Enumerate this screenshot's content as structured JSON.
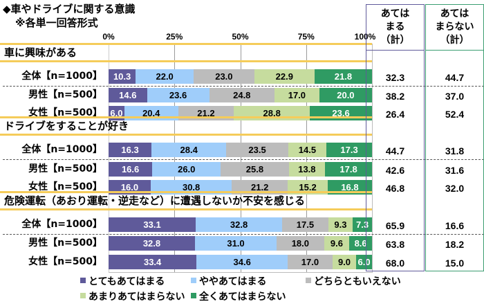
{
  "title": "◆車やドライブに関する意識",
  "subtitle": "※各単一回答形式",
  "chart_data": {
    "type": "bar",
    "orientation": "horizontal-stacked-100",
    "title": "◆車やドライブに関する意識",
    "subtitle": "※各単一回答形式",
    "x_ticks": [
      "0%",
      "25%",
      "50%",
      "75%",
      "100%"
    ],
    "xlim": [
      0,
      100
    ],
    "legend_position": "bottom",
    "series": [
      {
        "name": "とてもあてはまる",
        "color": "#5f5a9a",
        "text_color": "#ffffff"
      },
      {
        "name": "ややあてはまる",
        "color": "#9fcdfa",
        "text_color": "#000000"
      },
      {
        "name": "どちらともいえない",
        "color": "#bcbcbc",
        "text_color": "#000000"
      },
      {
        "name": "あまりあてはまらない",
        "color": "#c6dc9e",
        "text_color": "#000000"
      },
      {
        "name": "全くあてはまらない",
        "color": "#2f9b63",
        "text_color": "#ffffff"
      }
    ],
    "groups": [
      {
        "header": "車に興味がある",
        "rows": [
          {
            "label": "全体【n=1000】",
            "values": [
              10.3,
              22.0,
              23.0,
              22.9,
              21.8
            ],
            "apply": "32.3",
            "not_apply": "44.7"
          },
          {
            "label": "男性【n=500】",
            "values": [
              14.6,
              23.6,
              24.8,
              17.0,
              20.0
            ],
            "apply": "38.2",
            "not_apply": "37.0"
          },
          {
            "label": "女性【n=500】",
            "values": [
              6.0,
              20.4,
              21.2,
              28.8,
              23.6
            ],
            "apply": "26.4",
            "not_apply": "52.4"
          }
        ]
      },
      {
        "header": "ドライブをすることが好き",
        "rows": [
          {
            "label": "全体【n=1000】",
            "values": [
              16.3,
              28.4,
              23.5,
              14.5,
              17.3
            ],
            "apply": "44.7",
            "not_apply": "31.8"
          },
          {
            "label": "男性【n=500】",
            "values": [
              16.6,
              26.0,
              25.8,
              13.8,
              17.8
            ],
            "apply": "42.6",
            "not_apply": "31.6"
          },
          {
            "label": "女性【n=500】",
            "values": [
              16.0,
              30.8,
              21.2,
              15.2,
              16.8
            ],
            "apply": "46.8",
            "not_apply": "32.0"
          }
        ]
      },
      {
        "header": "危険運転（あおり運転・逆走など）に遭遇しないか不安を感じる",
        "rows": [
          {
            "label": "全体【n=1000】",
            "values": [
              33.1,
              32.8,
              17.5,
              9.3,
              7.3
            ],
            "apply": "65.9",
            "not_apply": "16.6"
          },
          {
            "label": "男性【n=500】",
            "values": [
              32.8,
              31.0,
              18.0,
              9.6,
              8.6
            ],
            "apply": "63.8",
            "not_apply": "18.2"
          },
          {
            "label": "女性【n=500】",
            "values": [
              33.4,
              34.6,
              17.0,
              9.0,
              6.0
            ],
            "apply": "68.0",
            "not_apply": "15.0"
          }
        ]
      }
    ]
  },
  "summary_columns": {
    "apply": {
      "header_lines": [
        "あてはまる",
        "（計）"
      ],
      "header_l1": "あては",
      "header_l2": "まる",
      "header_l3": "（計）",
      "border_color": "#5f5a9a"
    },
    "not_apply": {
      "header_l1": "あては",
      "header_l2": "まらない",
      "header_l3": "（計）",
      "border_color": "#3a9d70"
    }
  }
}
